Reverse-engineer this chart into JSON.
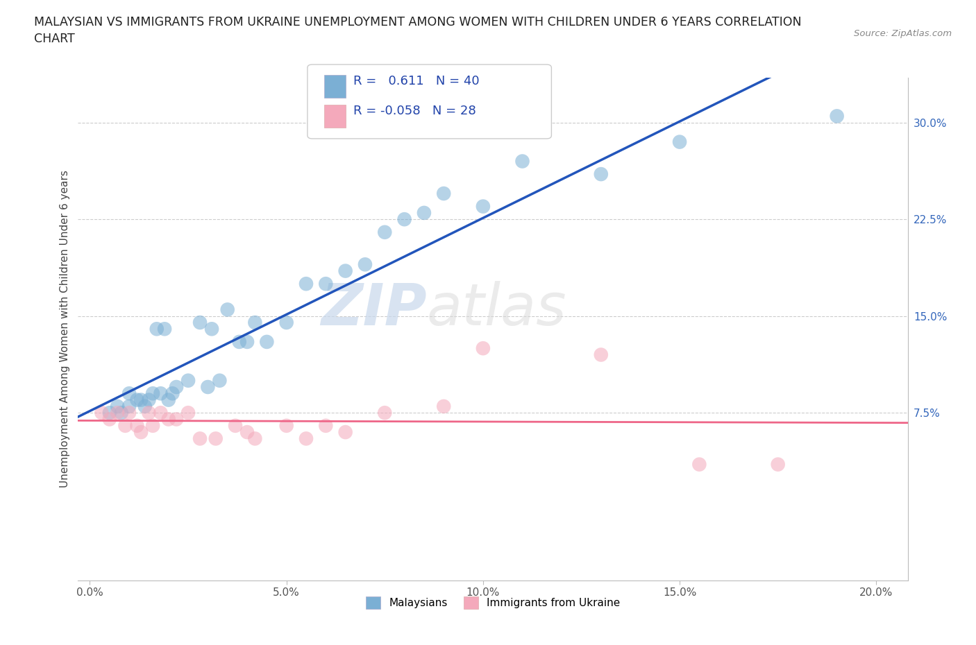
{
  "title": "MALAYSIAN VS IMMIGRANTS FROM UKRAINE UNEMPLOYMENT AMONG WOMEN WITH CHILDREN UNDER 6 YEARS CORRELATION\nCHART",
  "source": "Source: ZipAtlas.com",
  "ylabel": "Unemployment Among Women with Children Under 6 years",
  "xlabel_ticks": [
    "0.0%",
    "5.0%",
    "10.0%",
    "15.0%",
    "20.0%"
  ],
  "xlabel_vals": [
    0.0,
    0.05,
    0.1,
    0.15,
    0.2
  ],
  "ylabel_ticks": [
    "7.5%",
    "15.0%",
    "22.5%",
    "30.0%"
  ],
  "ylabel_vals": [
    0.075,
    0.15,
    0.225,
    0.3
  ],
  "r_malaysian": 0.611,
  "n_malaysian": 40,
  "r_ukraine": -0.058,
  "n_ukraine": 28,
  "malaysian_color": "#7BAFD4",
  "ukraine_color": "#F4A9BB",
  "line_malaysian": "#2255BB",
  "line_ukraine": "#EE6688",
  "watermark_zip": "ZIP",
  "watermark_atlas": "atlas",
  "malaysian_x": [
    0.005,
    0.007,
    0.008,
    0.01,
    0.01,
    0.012,
    0.013,
    0.014,
    0.015,
    0.016,
    0.017,
    0.018,
    0.019,
    0.02,
    0.021,
    0.022,
    0.025,
    0.028,
    0.03,
    0.031,
    0.033,
    0.035,
    0.038,
    0.04,
    0.042,
    0.045,
    0.05,
    0.055,
    0.06,
    0.065,
    0.07,
    0.075,
    0.08,
    0.085,
    0.09,
    0.1,
    0.11,
    0.13,
    0.15,
    0.19
  ],
  "malaysian_y": [
    0.075,
    0.08,
    0.075,
    0.09,
    0.08,
    0.085,
    0.085,
    0.08,
    0.085,
    0.09,
    0.14,
    0.09,
    0.14,
    0.085,
    0.09,
    0.095,
    0.1,
    0.145,
    0.095,
    0.14,
    0.1,
    0.155,
    0.13,
    0.13,
    0.145,
    0.13,
    0.145,
    0.175,
    0.175,
    0.185,
    0.19,
    0.215,
    0.225,
    0.23,
    0.245,
    0.235,
    0.27,
    0.26,
    0.285,
    0.305
  ],
  "ukraine_x": [
    0.003,
    0.005,
    0.007,
    0.009,
    0.01,
    0.012,
    0.013,
    0.015,
    0.016,
    0.018,
    0.02,
    0.022,
    0.025,
    0.028,
    0.032,
    0.037,
    0.04,
    0.042,
    0.05,
    0.055,
    0.06,
    0.065,
    0.075,
    0.09,
    0.1,
    0.13,
    0.155,
    0.175
  ],
  "ukraine_y": [
    0.075,
    0.07,
    0.075,
    0.065,
    0.075,
    0.065,
    0.06,
    0.075,
    0.065,
    0.075,
    0.07,
    0.07,
    0.075,
    0.055,
    0.055,
    0.065,
    0.06,
    0.055,
    0.065,
    0.055,
    0.065,
    0.06,
    0.075,
    0.08,
    0.125,
    0.12,
    0.035,
    0.035
  ],
  "xmin": -0.003,
  "xmax": 0.208,
  "ymin": -0.055,
  "ymax": 0.335,
  "line_m_x0": 0.0,
  "line_m_x1": 0.208,
  "line_u_x0": 0.0,
  "line_u_x1": 0.208
}
